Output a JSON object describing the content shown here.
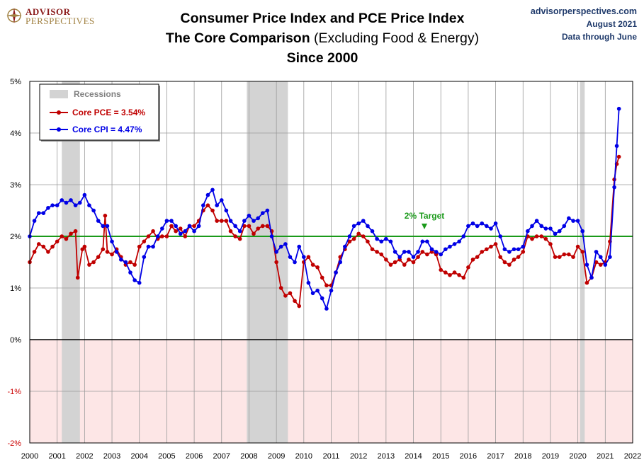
{
  "header": {
    "logo_line1": "ADVISOR",
    "logo_line2": "PERSPECTIVES",
    "title_line1": "Consumer Price Index and PCE Price Index",
    "title_line2_bold": "The Core Comparison",
    "title_line2_normal": " (Excluding Food & Energy)",
    "title_line3": "Since 2000",
    "source_site": "advisorperspectives.com",
    "source_date": "August 2021",
    "source_through": "Data through June"
  },
  "colors": {
    "pce": "#c00000",
    "cpi": "#0000e6",
    "target": "#1a9a1a",
    "recession": "#d3d3d3",
    "negative_band": "#fde6e6"
  },
  "chart_data": {
    "type": "line",
    "title": "Consumer Price Index and PCE Price Index",
    "xlabel": "",
    "ylabel": "",
    "xlim": [
      2000,
      2022
    ],
    "ylim": [
      -2,
      5
    ],
    "x_ticks": [
      "2000",
      "2001",
      "2002",
      "2003",
      "2004",
      "2005",
      "2006",
      "2007",
      "2008",
      "2009",
      "2010",
      "2011",
      "2012",
      "2013",
      "2014",
      "2015",
      "2016",
      "2017",
      "2018",
      "2019",
      "2020",
      "2021",
      "2022"
    ],
    "y_ticks": [
      "-2%",
      "-1%",
      "0%",
      "1%",
      "2%",
      "3%",
      "4%",
      "5%"
    ],
    "grid": true,
    "legend_position": "top-left",
    "legend_title": "Recessions",
    "recessions": [
      [
        2001.17,
        2001.83
      ],
      [
        2007.92,
        2009.42
      ],
      [
        2020.08,
        2020.25
      ]
    ],
    "target": {
      "value": 2.0,
      "label": "2% Target",
      "x": 2014.4
    },
    "series": [
      {
        "name": "Core PCE = 3.54%",
        "color": "#c00000",
        "points": [
          [
            2000.0,
            1.5
          ],
          [
            2000.17,
            1.7
          ],
          [
            2000.33,
            1.85
          ],
          [
            2000.5,
            1.8
          ],
          [
            2000.67,
            1.7
          ],
          [
            2000.83,
            1.8
          ],
          [
            2001.0,
            1.9
          ],
          [
            2001.17,
            2.0
          ],
          [
            2001.33,
            1.95
          ],
          [
            2001.5,
            2.05
          ],
          [
            2001.67,
            2.1
          ],
          [
            2001.75,
            1.2
          ],
          [
            2001.92,
            1.75
          ],
          [
            2002.0,
            1.8
          ],
          [
            2002.17,
            1.45
          ],
          [
            2002.33,
            1.5
          ],
          [
            2002.5,
            1.6
          ],
          [
            2002.67,
            1.75
          ],
          [
            2002.75,
            2.4
          ],
          [
            2002.83,
            1.7
          ],
          [
            2003.0,
            1.65
          ],
          [
            2003.17,
            1.75
          ],
          [
            2003.33,
            1.6
          ],
          [
            2003.5,
            1.45
          ],
          [
            2003.67,
            1.5
          ],
          [
            2003.83,
            1.45
          ],
          [
            2004.0,
            1.8
          ],
          [
            2004.17,
            1.9
          ],
          [
            2004.33,
            2.0
          ],
          [
            2004.5,
            2.1
          ],
          [
            2004.67,
            1.95
          ],
          [
            2004.83,
            2.0
          ],
          [
            2005.0,
            2.0
          ],
          [
            2005.17,
            2.2
          ],
          [
            2005.33,
            2.1
          ],
          [
            2005.5,
            2.15
          ],
          [
            2005.67,
            2.0
          ],
          [
            2005.83,
            2.2
          ],
          [
            2006.0,
            2.2
          ],
          [
            2006.17,
            2.3
          ],
          [
            2006.33,
            2.5
          ],
          [
            2006.5,
            2.6
          ],
          [
            2006.67,
            2.5
          ],
          [
            2006.83,
            2.3
          ],
          [
            2007.0,
            2.3
          ],
          [
            2007.17,
            2.3
          ],
          [
            2007.33,
            2.1
          ],
          [
            2007.5,
            2.0
          ],
          [
            2007.67,
            1.95
          ],
          [
            2007.83,
            2.2
          ],
          [
            2008.0,
            2.2
          ],
          [
            2008.17,
            2.05
          ],
          [
            2008.33,
            2.15
          ],
          [
            2008.5,
            2.2
          ],
          [
            2008.67,
            2.2
          ],
          [
            2008.83,
            2.1
          ],
          [
            2009.0,
            1.5
          ],
          [
            2009.17,
            1.0
          ],
          [
            2009.33,
            0.85
          ],
          [
            2009.5,
            0.9
          ],
          [
            2009.67,
            0.75
          ],
          [
            2009.83,
            0.65
          ],
          [
            2010.0,
            1.5
          ],
          [
            2010.17,
            1.6
          ],
          [
            2010.33,
            1.45
          ],
          [
            2010.5,
            1.4
          ],
          [
            2010.67,
            1.2
          ],
          [
            2010.83,
            1.05
          ],
          [
            2011.0,
            1.05
          ],
          [
            2011.17,
            1.3
          ],
          [
            2011.33,
            1.6
          ],
          [
            2011.5,
            1.75
          ],
          [
            2011.67,
            1.9
          ],
          [
            2011.83,
            1.95
          ],
          [
            2012.0,
            2.05
          ],
          [
            2012.17,
            2.0
          ],
          [
            2012.33,
            1.9
          ],
          [
            2012.5,
            1.75
          ],
          [
            2012.67,
            1.7
          ],
          [
            2012.83,
            1.65
          ],
          [
            2013.0,
            1.55
          ],
          [
            2013.17,
            1.45
          ],
          [
            2013.33,
            1.5
          ],
          [
            2013.5,
            1.55
          ],
          [
            2013.67,
            1.45
          ],
          [
            2013.83,
            1.55
          ],
          [
            2014.0,
            1.5
          ],
          [
            2014.17,
            1.6
          ],
          [
            2014.33,
            1.7
          ],
          [
            2014.5,
            1.65
          ],
          [
            2014.67,
            1.7
          ],
          [
            2014.83,
            1.65
          ],
          [
            2015.0,
            1.35
          ],
          [
            2015.17,
            1.3
          ],
          [
            2015.33,
            1.25
          ],
          [
            2015.5,
            1.3
          ],
          [
            2015.67,
            1.25
          ],
          [
            2015.83,
            1.2
          ],
          [
            2016.0,
            1.4
          ],
          [
            2016.17,
            1.55
          ],
          [
            2016.33,
            1.6
          ],
          [
            2016.5,
            1.7
          ],
          [
            2016.67,
            1.75
          ],
          [
            2016.83,
            1.8
          ],
          [
            2017.0,
            1.85
          ],
          [
            2017.17,
            1.6
          ],
          [
            2017.33,
            1.5
          ],
          [
            2017.5,
            1.45
          ],
          [
            2017.67,
            1.55
          ],
          [
            2017.83,
            1.6
          ],
          [
            2018.0,
            1.7
          ],
          [
            2018.17,
            2.0
          ],
          [
            2018.33,
            1.95
          ],
          [
            2018.5,
            2.0
          ],
          [
            2018.67,
            2.0
          ],
          [
            2018.83,
            1.95
          ],
          [
            2019.0,
            1.85
          ],
          [
            2019.17,
            1.6
          ],
          [
            2019.33,
            1.6
          ],
          [
            2019.5,
            1.65
          ],
          [
            2019.67,
            1.65
          ],
          [
            2019.83,
            1.6
          ],
          [
            2020.0,
            1.8
          ],
          [
            2020.17,
            1.7
          ],
          [
            2020.33,
            1.1
          ],
          [
            2020.5,
            1.2
          ],
          [
            2020.67,
            1.5
          ],
          [
            2020.83,
            1.45
          ],
          [
            2021.0,
            1.5
          ],
          [
            2021.17,
            1.9
          ],
          [
            2021.33,
            3.1
          ],
          [
            2021.42,
            3.4
          ],
          [
            2021.5,
            3.54
          ]
        ]
      },
      {
        "name": "Core CPI = 4.47%",
        "color": "#0000e6",
        "points": [
          [
            2000.0,
            2.0
          ],
          [
            2000.17,
            2.3
          ],
          [
            2000.33,
            2.45
          ],
          [
            2000.5,
            2.45
          ],
          [
            2000.67,
            2.55
          ],
          [
            2000.83,
            2.6
          ],
          [
            2001.0,
            2.6
          ],
          [
            2001.17,
            2.7
          ],
          [
            2001.33,
            2.65
          ],
          [
            2001.5,
            2.7
          ],
          [
            2001.67,
            2.6
          ],
          [
            2001.83,
            2.65
          ],
          [
            2002.0,
            2.8
          ],
          [
            2002.17,
            2.6
          ],
          [
            2002.33,
            2.5
          ],
          [
            2002.5,
            2.3
          ],
          [
            2002.67,
            2.2
          ],
          [
            2002.83,
            2.2
          ],
          [
            2003.0,
            1.9
          ],
          [
            2003.17,
            1.7
          ],
          [
            2003.33,
            1.55
          ],
          [
            2003.5,
            1.5
          ],
          [
            2003.67,
            1.3
          ],
          [
            2003.83,
            1.15
          ],
          [
            2004.0,
            1.1
          ],
          [
            2004.17,
            1.6
          ],
          [
            2004.33,
            1.8
          ],
          [
            2004.5,
            1.8
          ],
          [
            2004.67,
            2.0
          ],
          [
            2004.83,
            2.15
          ],
          [
            2005.0,
            2.3
          ],
          [
            2005.17,
            2.3
          ],
          [
            2005.33,
            2.2
          ],
          [
            2005.5,
            2.05
          ],
          [
            2005.67,
            2.1
          ],
          [
            2005.83,
            2.2
          ],
          [
            2006.0,
            2.1
          ],
          [
            2006.17,
            2.2
          ],
          [
            2006.33,
            2.6
          ],
          [
            2006.5,
            2.8
          ],
          [
            2006.67,
            2.9
          ],
          [
            2006.83,
            2.6
          ],
          [
            2007.0,
            2.7
          ],
          [
            2007.17,
            2.5
          ],
          [
            2007.33,
            2.3
          ],
          [
            2007.5,
            2.2
          ],
          [
            2007.67,
            2.1
          ],
          [
            2007.83,
            2.3
          ],
          [
            2008.0,
            2.4
          ],
          [
            2008.17,
            2.3
          ],
          [
            2008.33,
            2.35
          ],
          [
            2008.5,
            2.45
          ],
          [
            2008.67,
            2.5
          ],
          [
            2008.83,
            2.0
          ],
          [
            2009.0,
            1.7
          ],
          [
            2009.17,
            1.8
          ],
          [
            2009.33,
            1.85
          ],
          [
            2009.5,
            1.6
          ],
          [
            2009.67,
            1.5
          ],
          [
            2009.83,
            1.8
          ],
          [
            2010.0,
            1.6
          ],
          [
            2010.17,
            1.1
          ],
          [
            2010.33,
            0.9
          ],
          [
            2010.5,
            0.95
          ],
          [
            2010.67,
            0.8
          ],
          [
            2010.83,
            0.6
          ],
          [
            2011.0,
            0.95
          ],
          [
            2011.17,
            1.3
          ],
          [
            2011.33,
            1.5
          ],
          [
            2011.5,
            1.8
          ],
          [
            2011.67,
            2.0
          ],
          [
            2011.83,
            2.2
          ],
          [
            2012.0,
            2.25
          ],
          [
            2012.17,
            2.3
          ],
          [
            2012.33,
            2.2
          ],
          [
            2012.5,
            2.1
          ],
          [
            2012.67,
            1.95
          ],
          [
            2012.83,
            1.9
          ],
          [
            2013.0,
            1.95
          ],
          [
            2013.17,
            1.9
          ],
          [
            2013.33,
            1.7
          ],
          [
            2013.5,
            1.6
          ],
          [
            2013.67,
            1.7
          ],
          [
            2013.83,
            1.7
          ],
          [
            2014.0,
            1.6
          ],
          [
            2014.17,
            1.7
          ],
          [
            2014.33,
            1.9
          ],
          [
            2014.5,
            1.9
          ],
          [
            2014.67,
            1.75
          ],
          [
            2014.83,
            1.7
          ],
          [
            2015.0,
            1.65
          ],
          [
            2015.17,
            1.75
          ],
          [
            2015.33,
            1.8
          ],
          [
            2015.5,
            1.85
          ],
          [
            2015.67,
            1.9
          ],
          [
            2015.83,
            2.0
          ],
          [
            2016.0,
            2.2
          ],
          [
            2016.17,
            2.25
          ],
          [
            2016.33,
            2.2
          ],
          [
            2016.5,
            2.25
          ],
          [
            2016.67,
            2.2
          ],
          [
            2016.83,
            2.15
          ],
          [
            2017.0,
            2.25
          ],
          [
            2017.17,
            2.0
          ],
          [
            2017.33,
            1.75
          ],
          [
            2017.5,
            1.7
          ],
          [
            2017.67,
            1.75
          ],
          [
            2017.83,
            1.75
          ],
          [
            2018.0,
            1.8
          ],
          [
            2018.17,
            2.1
          ],
          [
            2018.33,
            2.2
          ],
          [
            2018.5,
            2.3
          ],
          [
            2018.67,
            2.2
          ],
          [
            2018.83,
            2.15
          ],
          [
            2019.0,
            2.15
          ],
          [
            2019.17,
            2.05
          ],
          [
            2019.33,
            2.1
          ],
          [
            2019.5,
            2.2
          ],
          [
            2019.67,
            2.35
          ],
          [
            2019.83,
            2.3
          ],
          [
            2020.0,
            2.3
          ],
          [
            2020.17,
            2.1
          ],
          [
            2020.33,
            1.45
          ],
          [
            2020.5,
            1.2
          ],
          [
            2020.67,
            1.7
          ],
          [
            2020.83,
            1.6
          ],
          [
            2021.0,
            1.45
          ],
          [
            2021.17,
            1.6
          ],
          [
            2021.33,
            2.95
          ],
          [
            2021.42,
            3.75
          ],
          [
            2021.5,
            4.47
          ]
        ]
      }
    ]
  }
}
